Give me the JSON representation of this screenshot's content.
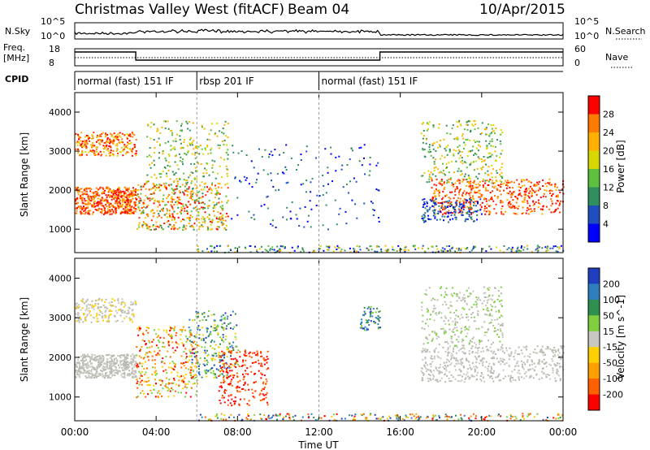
{
  "header": {
    "station": "Christmas Valley West (fitACF)",
    "beam": "Beam 04",
    "date": "10/Apr/2015"
  },
  "noise_panel": {
    "left_label": "N.Sky",
    "left_ticks": [
      "10^5",
      "10^0"
    ],
    "right_ticks": [
      "10^5",
      "10^0"
    ],
    "right_label": "N.Search"
  },
  "freq_panel": {
    "left_label": "Freq.",
    "left_unit": "[MHz]",
    "left_ticks": [
      "18",
      "8"
    ],
    "right_ticks": [
      "60",
      "0"
    ],
    "right_label": "Nave"
  },
  "cpid_panel": {
    "label": "CPID",
    "modes": [
      {
        "name": "normal (fast) 151 IF",
        "start_h": 0,
        "end_h": 6
      },
      {
        "name": "rbsp 201 IF",
        "start_h": 6,
        "end_h": 12
      },
      {
        "name": "normal (fast) 151 IF",
        "start_h": 12,
        "end_h": 24
      }
    ]
  },
  "x_axis": {
    "label": "Time UT",
    "ticks": [
      "00:00",
      "04:00",
      "08:00",
      "12:00",
      "16:00",
      "20:00",
      "00:00"
    ]
  },
  "chart_data": [
    {
      "type": "heatmap",
      "panel": "power",
      "ylabel": "Slant Range [km]",
      "xlim": [
        0,
        24
      ],
      "ylim": [
        400,
        4500
      ],
      "yticks": [
        "4000",
        "3000",
        "2000",
        "1000"
      ],
      "colorbar": {
        "label": "Power [dB]",
        "ticks": [
          "28",
          "24",
          "20",
          "16",
          "12",
          "8",
          "4"
        ],
        "colors": [
          "#ff0000",
          "#ff7a00",
          "#ffb000",
          "#d8d800",
          "#5fbf3f",
          "#2f8f5f",
          "#1f4fbf",
          "#0000ff"
        ]
      },
      "features": [
        {
          "name": "main echo band",
          "t_start": 0,
          "t_end": 8,
          "range_km": [
            1400,
            2300
          ],
          "power_db": 24
        },
        {
          "name": "upper band",
          "t_start": 0,
          "t_end": 3,
          "range_km": [
            2800,
            3500
          ],
          "power_db": 22
        },
        {
          "name": "afternoon band",
          "t_start": 17,
          "t_end": 24,
          "range_km": [
            1500,
            2600
          ],
          "power_db": 22
        }
      ]
    },
    {
      "type": "heatmap",
      "panel": "velocity",
      "ylabel": "Slant Range [km]",
      "xlim": [
        0,
        24
      ],
      "ylim": [
        400,
        4500
      ],
      "yticks": [
        "4000",
        "3000",
        "2000",
        "1000"
      ],
      "colorbar": {
        "label": "Velocity [m s^-1]",
        "ticks": [
          "200",
          "100",
          "50",
          "15",
          "-15",
          "-50",
          "-100",
          "-200"
        ],
        "colors": [
          "#1f3fbf",
          "#2f7fbf",
          "#2f8f4f",
          "#7fcf3f",
          "#c8c8c0",
          "#ffd000",
          "#ffa000",
          "#ff6000",
          "#ff0000"
        ]
      },
      "features": [
        {
          "name": "ground scatter",
          "t_start": 0,
          "t_end": 3,
          "range_km": [
            1500,
            2000
          ],
          "velocity": 0
        },
        {
          "name": "morning flow",
          "t_start": 3,
          "t_end": 8,
          "range_km": [
            1000,
            3000
          ],
          "velocity": -60
        },
        {
          "name": "afternoon ground scatter",
          "t_start": 17,
          "t_end": 24,
          "range_km": [
            1500,
            3300
          ],
          "velocity": 0
        }
      ]
    }
  ]
}
